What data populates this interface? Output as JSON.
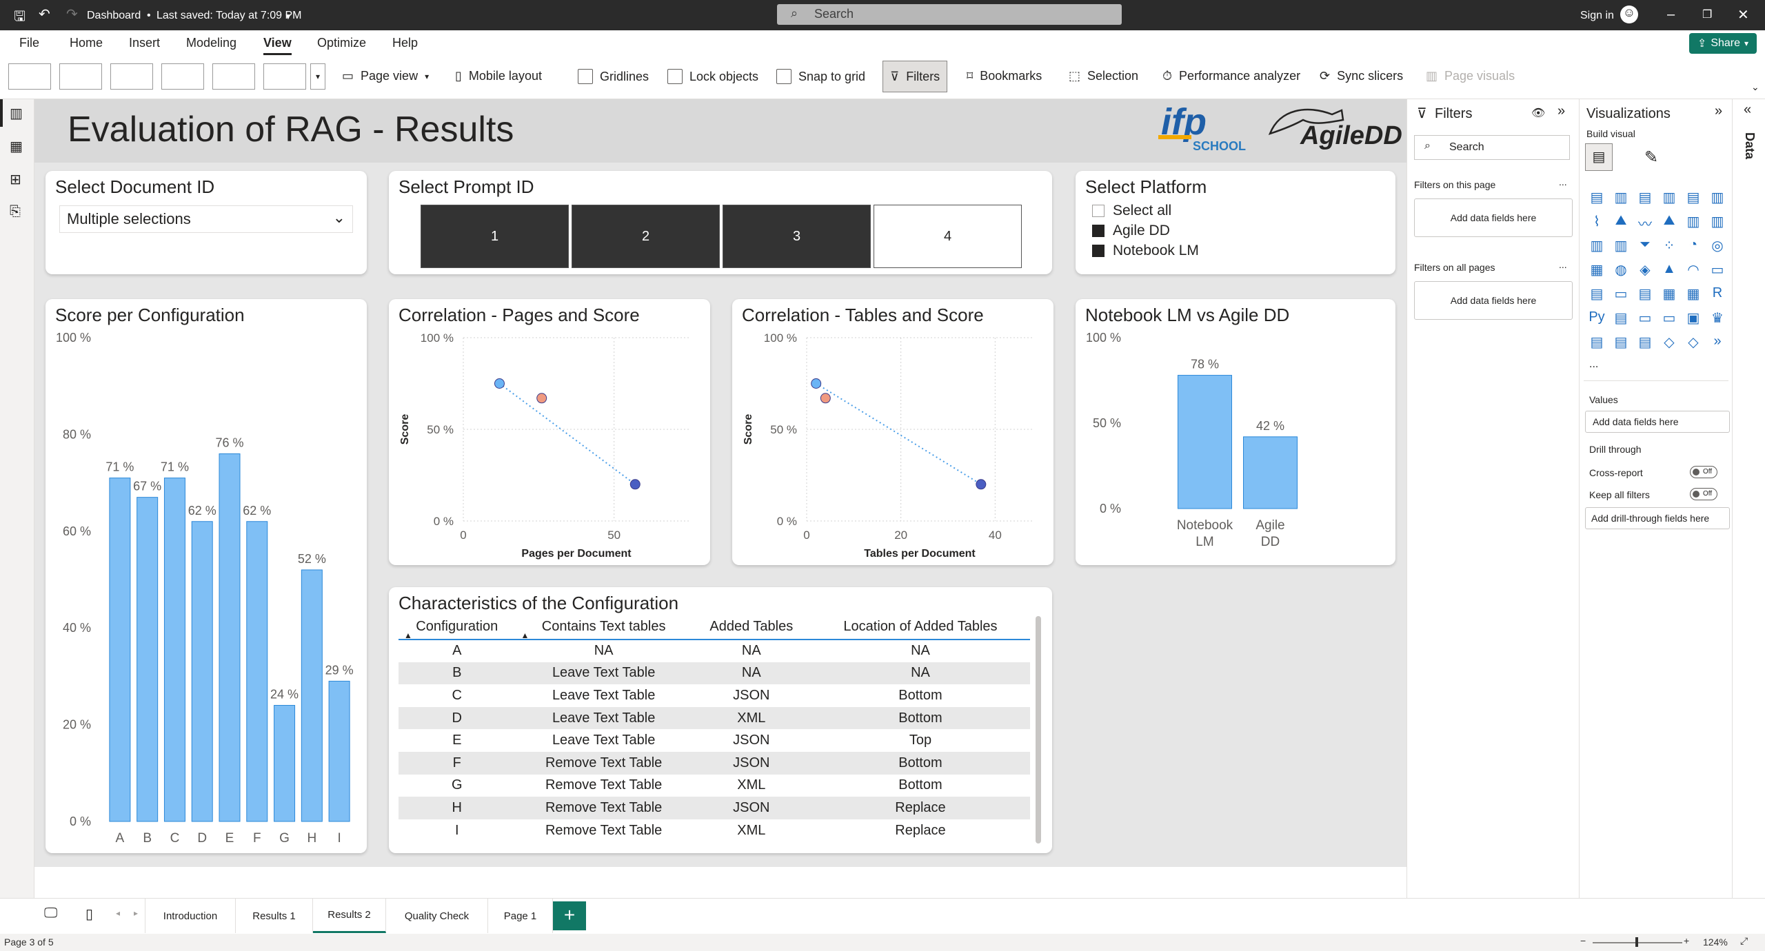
{
  "window": {
    "title": "Dashboard",
    "saved": "Last saved: Today at 7:09 PM",
    "search": "Search",
    "signin": "Sign in",
    "share": "Share"
  },
  "menu": [
    "File",
    "Home",
    "Insert",
    "Modeling",
    "View",
    "Optimize",
    "Help"
  ],
  "ribbon": {
    "page_view": "Page view",
    "mobile": "Mobile layout",
    "gridlines": "Gridlines",
    "lock": "Lock objects",
    "snap": "Snap to grid",
    "filters": "Filters",
    "bookmarks": "Bookmarks",
    "selection": "Selection",
    "perf": "Performance analyzer",
    "sync": "Sync slicers",
    "page_visuals": "Page visuals"
  },
  "report": {
    "title": "Evaluation of RAG - Results",
    "logo1": "ifp",
    "logo1_sub": "SCHOOL",
    "logo2": "AgileDD"
  },
  "doc_slicer": {
    "title": "Select Document ID",
    "value": "Multiple selections"
  },
  "prompt_slicer": {
    "title": "Select Prompt ID",
    "items": [
      {
        "label": "1",
        "selected": true
      },
      {
        "label": "2",
        "selected": true
      },
      {
        "label": "3",
        "selected": true
      },
      {
        "label": "4",
        "selected": false
      }
    ]
  },
  "platform_slicer": {
    "title": "Select Platform",
    "items": [
      {
        "label": "Select all",
        "checked": false
      },
      {
        "label": "Agile DD",
        "checked": true
      },
      {
        "label": "Notebook LM",
        "checked": true
      }
    ]
  },
  "chart_data": [
    {
      "type": "bar",
      "title": "Score per Configuration",
      "categories": [
        "A",
        "B",
        "C",
        "D",
        "E",
        "F",
        "G",
        "H",
        "I"
      ],
      "values": [
        71,
        67,
        71,
        62,
        76,
        62,
        24,
        52,
        29
      ],
      "value_labels": [
        "71 %",
        "67 %",
        "71 %",
        "62 %",
        "76 %",
        "62 %",
        "24 %",
        "52 %",
        "29 %"
      ],
      "ylim": [
        0,
        100
      ],
      "yticks": [
        "100 %",
        "80 %",
        "60 %",
        "40 %",
        "20 %",
        "0 %"
      ],
      "color": "#7fbff5"
    },
    {
      "type": "scatter",
      "title": "Correlation - Pages and Score",
      "xlabel": "Pages per Document",
      "ylabel": "Score",
      "xlim": [
        0,
        75
      ],
      "ylim": [
        0,
        1
      ],
      "xticks": [
        "0",
        "50"
      ],
      "yticks": [
        "100 %",
        "50 %",
        "0 %"
      ],
      "points": [
        {
          "x": 12,
          "y": 0.75,
          "color": "#6ab4f5"
        },
        {
          "x": 26,
          "y": 0.67,
          "color": "#f09a80"
        },
        {
          "x": 57,
          "y": 0.2,
          "color": "#4a5ec2"
        }
      ],
      "trend": [
        [
          12,
          0.75
        ],
        [
          57,
          0.2
        ]
      ]
    },
    {
      "type": "scatter",
      "title": "Correlation - Tables and Score",
      "xlabel": "Tables per Document",
      "ylabel": "Score",
      "xlim": [
        0,
        48
      ],
      "ylim": [
        0,
        1
      ],
      "xticks": [
        "0",
        "20",
        "40"
      ],
      "yticks": [
        "100 %",
        "50 %",
        "0 %"
      ],
      "points": [
        {
          "x": 2,
          "y": 0.75,
          "color": "#6ab4f5"
        },
        {
          "x": 4,
          "y": 0.67,
          "color": "#f09a80"
        },
        {
          "x": 37,
          "y": 0.2,
          "color": "#4a5ec2"
        }
      ],
      "trend": [
        [
          2,
          0.75
        ],
        [
          37,
          0.2
        ]
      ]
    },
    {
      "type": "bar",
      "title": "Notebook LM vs Agile DD",
      "categories": [
        "Notebook LM",
        "Agile DD"
      ],
      "values": [
        78,
        42
      ],
      "value_labels": [
        "78 %",
        "42 %"
      ],
      "ylim": [
        0,
        100
      ],
      "yticks": [
        "100 %",
        "50 %",
        "0 %"
      ],
      "color": "#7fbff5"
    }
  ],
  "config_table": {
    "title": "Characteristics of the Configuration",
    "columns": [
      "Configuration",
      "Contains Text tables",
      "Added Tables",
      "Location of Added Tables"
    ],
    "rows": [
      [
        "A",
        "NA",
        "NA",
        "NA"
      ],
      [
        "B",
        "Leave Text Table",
        "NA",
        "NA"
      ],
      [
        "C",
        "Leave Text Table",
        "JSON",
        "Bottom"
      ],
      [
        "D",
        "Leave Text Table",
        "XML",
        "Bottom"
      ],
      [
        "E",
        "Leave Text Table",
        "JSON",
        "Top"
      ],
      [
        "F",
        "Remove Text Table",
        "JSON",
        "Bottom"
      ],
      [
        "G",
        "Remove Text Table",
        "XML",
        "Bottom"
      ],
      [
        "H",
        "Remove Text Table",
        "JSON",
        "Replace"
      ],
      [
        "I",
        "Remove Text Table",
        "XML",
        "Replace"
      ]
    ]
  },
  "filters_pane": {
    "title": "Filters",
    "search": "Search",
    "on_page": "Filters on this page",
    "on_all": "Filters on all pages",
    "add": "Add data fields here",
    "more": "..."
  },
  "viz_pane": {
    "title": "Visualizations",
    "build": "Build visual",
    "values": "Values",
    "add_values": "Add data fields here",
    "drill": "Drill through",
    "cross": "Cross-report",
    "keep": "Keep all filters",
    "off": "Off",
    "add_drill": "Add drill-through fields here",
    "more": "..."
  },
  "data_pane": {
    "label": "Data"
  },
  "tabs": [
    "Introduction",
    "Results 1",
    "Results 2",
    "Quality Check",
    "Page 1"
  ],
  "status": {
    "page": "Page 3 of 5",
    "zoom": "124%"
  }
}
